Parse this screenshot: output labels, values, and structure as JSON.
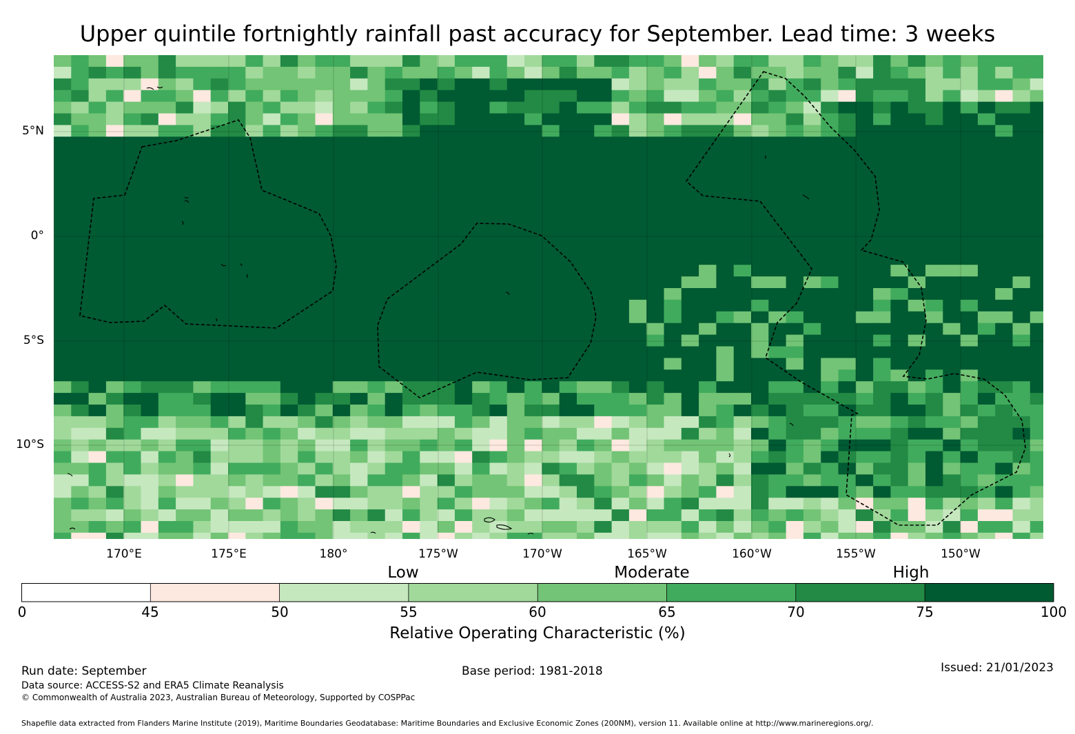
{
  "title": "Upper quintile fortnightly rainfall past accuracy for September. Lead time: 3 weeks",
  "map": {
    "lat_labels": [
      "5°N",
      "0°",
      "5°S",
      "10°S"
    ],
    "lon_labels": [
      "170°E",
      "175°E",
      "180°",
      "175°W",
      "170°W",
      "165°W",
      "160°W",
      "155°W",
      "150°W"
    ],
    "lat_range": [
      -14.5,
      8.7
    ],
    "lon_range": [
      166.6,
      213.9
    ],
    "palette": [
      "#ffffff",
      "#fee9e0",
      "#c6e8bf",
      "#a1d99b",
      "#73c476",
      "#41ab5d",
      "#228a44",
      "#005a32"
    ]
  },
  "colorbar": {
    "categories": [
      "Low",
      "Moderate",
      "High"
    ],
    "ticks": [
      "0",
      "45",
      "50",
      "55",
      "60",
      "65",
      "70",
      "75",
      "100"
    ],
    "label": "Relative Operating Characteristic (%)"
  },
  "footer": {
    "run_date": "Run date: September",
    "base_period": "Base period: 1981-2018",
    "issued": "Issued: 21/01/2023",
    "data_source": "Data source: ACCESS-S2 and ERA5 Climate Reanalysis",
    "copyright": "© Commonwealth of Australia 2023, Australian Bureau of Meteorology, Supported by COSPPac",
    "shapefile": "Shapefile data extracted from Flanders Marine Institute (2019), Maritime Boundaries Geodatabase: Maritime Boundaries and Exclusive Economic Zones (200NM), version 11. Available online at http://www.marineregions.org/."
  }
}
